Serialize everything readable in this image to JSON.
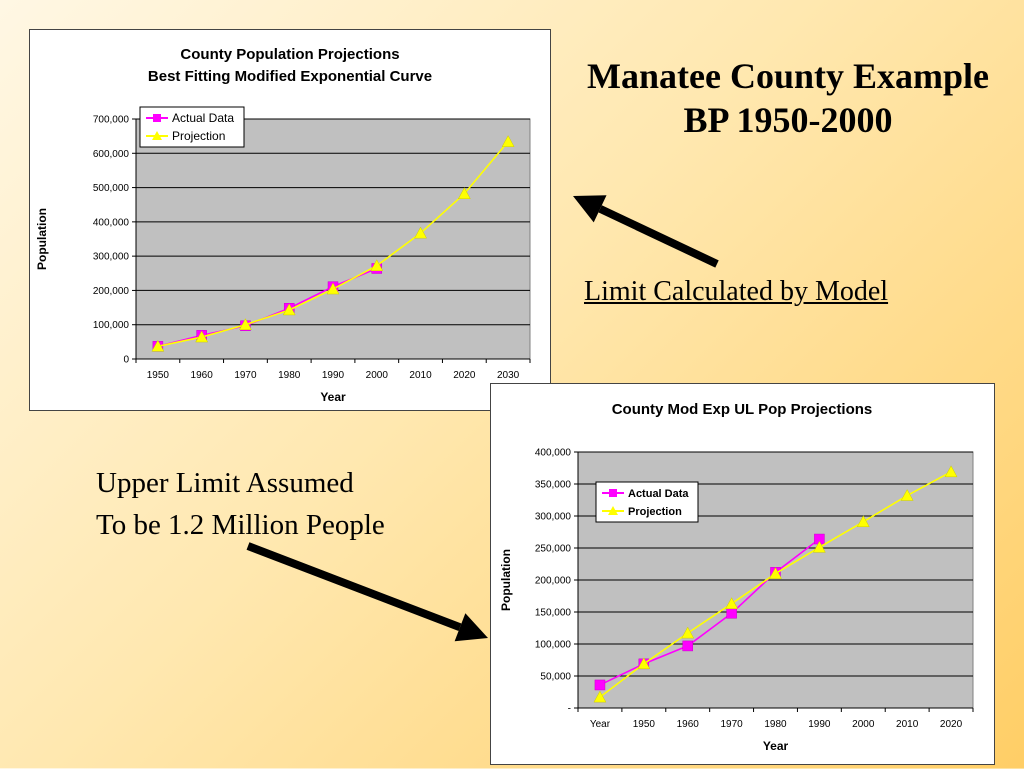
{
  "slide": {
    "title_line1": "Manatee County Example",
    "title_line2": "BP 1950-2000",
    "limit_caption": "Limit Calculated by Model",
    "upper_line1": "Upper Limit Assumed",
    "upper_line2": "To be 1.2 Million People"
  },
  "colors": {
    "actual": "#ff00ff",
    "projection": "#ffff00",
    "plot_bg": "#c0c0c0",
    "arrow": "#000000"
  },
  "chart_data": [
    {
      "type": "line",
      "title": "County Population Projections",
      "subtitle": "Best Fitting Modified Exponential Curve",
      "xlabel": "Year",
      "ylabel": "Population",
      "categories": [
        "1950",
        "1960",
        "1970",
        "1980",
        "1990",
        "2000",
        "2010",
        "2020",
        "2030"
      ],
      "ylim": [
        0,
        700000
      ],
      "yticks": [
        0,
        100000,
        200000,
        300000,
        400000,
        500000,
        600000,
        700000
      ],
      "ytick_labels": [
        "0",
        "100,000",
        "200,000",
        "300,000",
        "400,000",
        "500,000",
        "600,000",
        "700,000"
      ],
      "grid": true,
      "legend": "top-left",
      "series": [
        {
          "name": "Actual Data",
          "color": "#ff00ff",
          "marker": "square",
          "values": [
            37000,
            69000,
            97000,
            148000,
            211000,
            264000,
            null,
            null,
            null
          ]
        },
        {
          "name": "Projection",
          "color": "#ffff00",
          "marker": "triangle",
          "values": [
            37000,
            64000,
            100000,
            143000,
            204000,
            272000,
            367000,
            482000,
            634000
          ]
        }
      ]
    },
    {
      "type": "line",
      "title": "County Mod Exp UL Pop Projections",
      "xlabel": "Year",
      "ylabel": "Population",
      "categories": [
        "Year",
        "1950",
        "1960",
        "1970",
        "1980",
        "1990",
        "2000",
        "2010",
        "2020"
      ],
      "ylim": [
        0,
        400000
      ],
      "yticks": [
        0,
        50000,
        100000,
        150000,
        200000,
        250000,
        300000,
        350000,
        400000
      ],
      "ytick_labels": [
        "-",
        "50,000",
        "100,000",
        "150,000",
        "200,000",
        "250,000",
        "300,000",
        "350,000",
        "400,000"
      ],
      "grid": true,
      "legend": "top-left",
      "series": [
        {
          "name": "Actual Data",
          "color": "#ff00ff",
          "marker": "square",
          "values": [
            36000,
            69000,
            97000,
            148000,
            212000,
            264000,
            null,
            null,
            null
          ]
        },
        {
          "name": "Projection",
          "color": "#ffff00",
          "marker": "triangle",
          "values": [
            17000,
            69000,
            117000,
            163000,
            210000,
            251000,
            291000,
            332000,
            369000
          ]
        }
      ]
    }
  ]
}
